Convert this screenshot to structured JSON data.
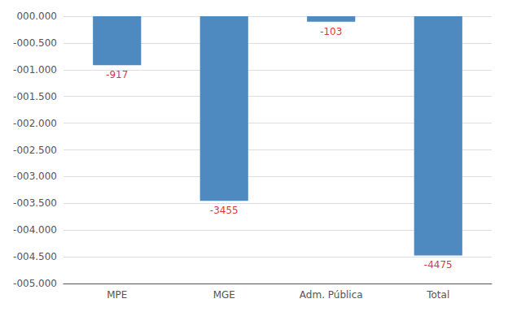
{
  "chart_data": {
    "type": "bar",
    "categories": [
      "MPE",
      "MGE",
      "Adm. Pública",
      "Total"
    ],
    "values": [
      -917,
      -3455,
      -103,
      -4475
    ],
    "color": "#4e8abf",
    "ylim": [
      -5000,
      0
    ],
    "yticks": [
      {
        "value": 0,
        "label": "000.000"
      },
      {
        "value": -500,
        "label": "-000.500"
      },
      {
        "value": -1000,
        "label": "-001.000"
      },
      {
        "value": -1500,
        "label": "-001.500"
      },
      {
        "value": -2000,
        "label": "-002.000"
      },
      {
        "value": -2500,
        "label": "-002.500"
      },
      {
        "value": -3000,
        "label": "-003.000"
      },
      {
        "value": -3500,
        "label": "-003.500"
      },
      {
        "value": -4000,
        "label": "-004.000"
      },
      {
        "value": -4500,
        "label": "-004.500"
      },
      {
        "value": -5000,
        "label": "-005.000"
      }
    ],
    "grid": true,
    "data_labels": true
  }
}
